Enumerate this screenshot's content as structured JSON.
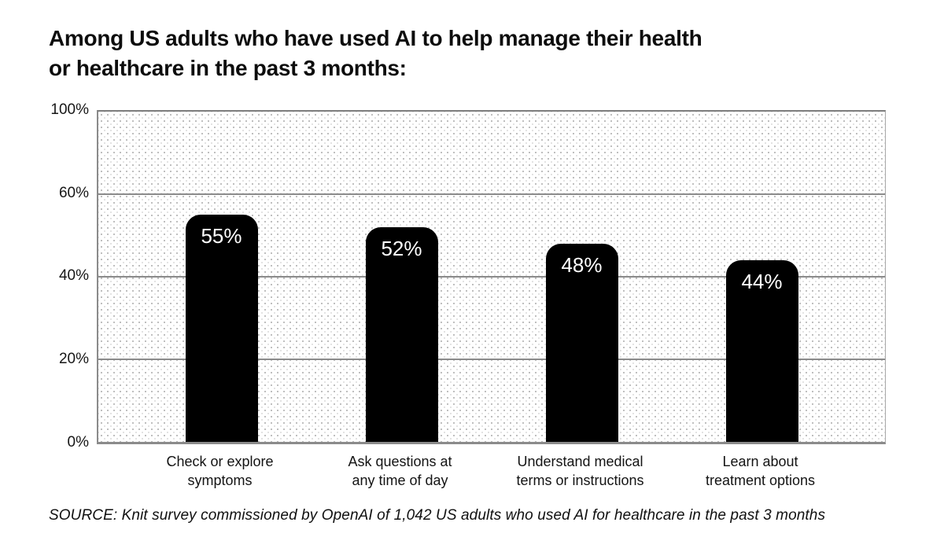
{
  "chart_data": {
    "type": "bar",
    "title": "Among US adults who have used AI to help manage their health or healthcare in the past 3 months:",
    "title_lines": [
      "Among US adults who have used AI to help manage their health",
      "or healthcare in the past 3 months:"
    ],
    "categories": [
      "Check or explore symptoms",
      "Ask questions at any time of day",
      "Understand medical terms or instructions",
      "Learn about treatment options"
    ],
    "category_lines": [
      [
        "Check or explore",
        "symptoms"
      ],
      [
        "Ask questions at",
        "any time of day"
      ],
      [
        "Understand medical",
        "terms or instructions"
      ],
      [
        "Learn about",
        "treatment options"
      ]
    ],
    "values": [
      55,
      52,
      48,
      44
    ],
    "value_labels": [
      "55%",
      "52%",
      "48%",
      "44%"
    ],
    "y_axis": {
      "tick_labels": [
        "100%",
        "60%",
        "40%",
        "20%",
        "0%"
      ],
      "ylim": [
        0,
        100
      ],
      "intervals": 4,
      "points_per_interval": 20,
      "note": "tick marks equally spaced; 60%-100% compressed into one interval"
    },
    "grid": true,
    "legend": "none",
    "bar_color": "#000000",
    "bar_label_color": "#ffffff",
    "plot_pattern": "light-gray-dot-grid",
    "source": "SOURCE: Knit survey commissioned by OpenAI of 1,042 US adults who used AI for healthcare in the past 3 months"
  }
}
